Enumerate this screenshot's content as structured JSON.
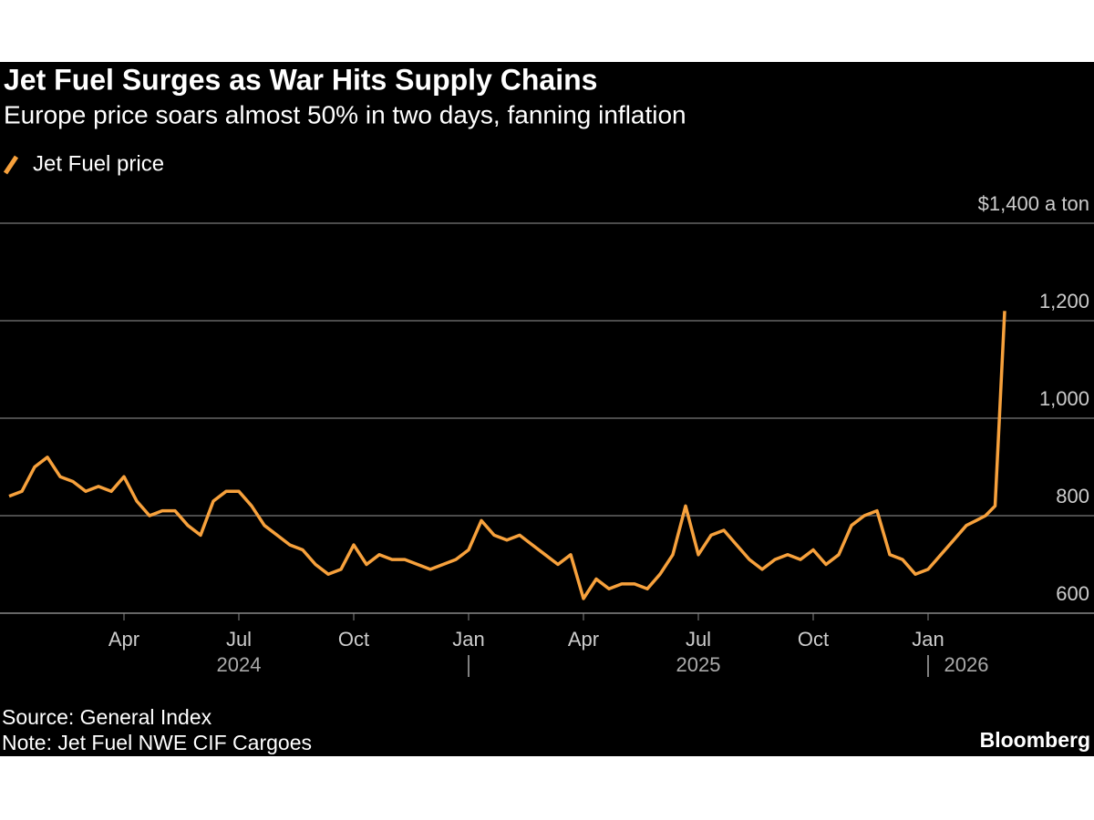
{
  "chart_data": {
    "type": "line",
    "title": "Jet Fuel Surges as War Hits Supply Chains",
    "subtitle": "Europe price soars almost 50% in two days, fanning inflation",
    "source": "Source: General Index",
    "note": "Note: Jet Fuel NWE CIF Cargoes",
    "brand": "Bloomberg",
    "x": [
      "2024-01",
      "2024-01",
      "2024-01",
      "2024-02",
      "2024-02",
      "2024-02",
      "2024-03",
      "2024-03",
      "2024-03",
      "2024-04",
      "2024-04",
      "2024-04",
      "2024-05",
      "2024-05",
      "2024-05",
      "2024-06",
      "2024-06",
      "2024-06",
      "2024-07",
      "2024-07",
      "2024-07",
      "2024-08",
      "2024-08",
      "2024-08",
      "2024-09",
      "2024-09",
      "2024-09",
      "2024-10",
      "2024-10",
      "2024-10",
      "2024-11",
      "2024-11",
      "2024-11",
      "2024-12",
      "2024-12",
      "2024-12",
      "2025-01",
      "2025-01",
      "2025-01",
      "2025-02",
      "2025-02",
      "2025-02",
      "2025-03",
      "2025-03",
      "2025-03",
      "2025-04",
      "2025-04",
      "2025-04",
      "2025-05",
      "2025-05",
      "2025-05",
      "2025-06",
      "2025-06",
      "2025-06",
      "2025-07",
      "2025-07",
      "2025-07",
      "2025-08",
      "2025-08",
      "2025-08",
      "2025-09",
      "2025-09",
      "2025-09",
      "2025-10",
      "2025-10",
      "2025-10",
      "2025-11",
      "2025-11",
      "2025-11",
      "2025-12",
      "2025-12",
      "2025-12",
      "2026-01",
      "2026-01",
      "2026-01",
      "2026-02",
      "2026-02",
      "2026-02",
      "2026-02",
      "2026-03"
    ],
    "series": [
      {
        "name": "Jet Fuel price",
        "color": "#f7a13c",
        "values": [
          840,
          850,
          900,
          920,
          880,
          870,
          850,
          860,
          850,
          880,
          830,
          800,
          810,
          810,
          780,
          760,
          830,
          850,
          850,
          820,
          780,
          760,
          740,
          730,
          700,
          680,
          690,
          740,
          700,
          720,
          710,
          710,
          700,
          690,
          700,
          710,
          730,
          790,
          760,
          750,
          760,
          740,
          720,
          700,
          720,
          630,
          670,
          650,
          660,
          660,
          650,
          680,
          720,
          820,
          720,
          760,
          770,
          740,
          710,
          690,
          710,
          720,
          710,
          730,
          700,
          720,
          780,
          800,
          810,
          720,
          710,
          680,
          690,
          720,
          750,
          780,
          790,
          800,
          820,
          1220
        ]
      }
    ],
    "xlim": [
      "2024-01",
      "2026-03"
    ],
    "xticks": [
      {
        "value": "2024-04",
        "label": "Apr"
      },
      {
        "value": "2024-07",
        "label": "Jul"
      },
      {
        "value": "2024-10",
        "label": "Oct"
      },
      {
        "value": "2025-01",
        "label": "Jan"
      },
      {
        "value": "2025-04",
        "label": "Apr"
      },
      {
        "value": "2025-07",
        "label": "Jul"
      },
      {
        "value": "2025-10",
        "label": "Oct"
      },
      {
        "value": "2026-01",
        "label": "Jan"
      }
    ],
    "year_ticks": [
      {
        "value": "2024-07",
        "label": "2024"
      },
      {
        "value": "2025-07",
        "label": "2025"
      },
      {
        "value": "2026-02",
        "label": "2026"
      }
    ],
    "year_separators": [
      "2025-01",
      "2026-01"
    ],
    "ylim": [
      600,
      1400
    ],
    "yticks": [
      600,
      800,
      {
        "value": 1000,
        "label": "1,000"
      },
      {
        "value": 1200,
        "label": "1,200"
      },
      {
        "value": 1400,
        "label": "$1,400 a ton"
      }
    ],
    "grid": true
  }
}
